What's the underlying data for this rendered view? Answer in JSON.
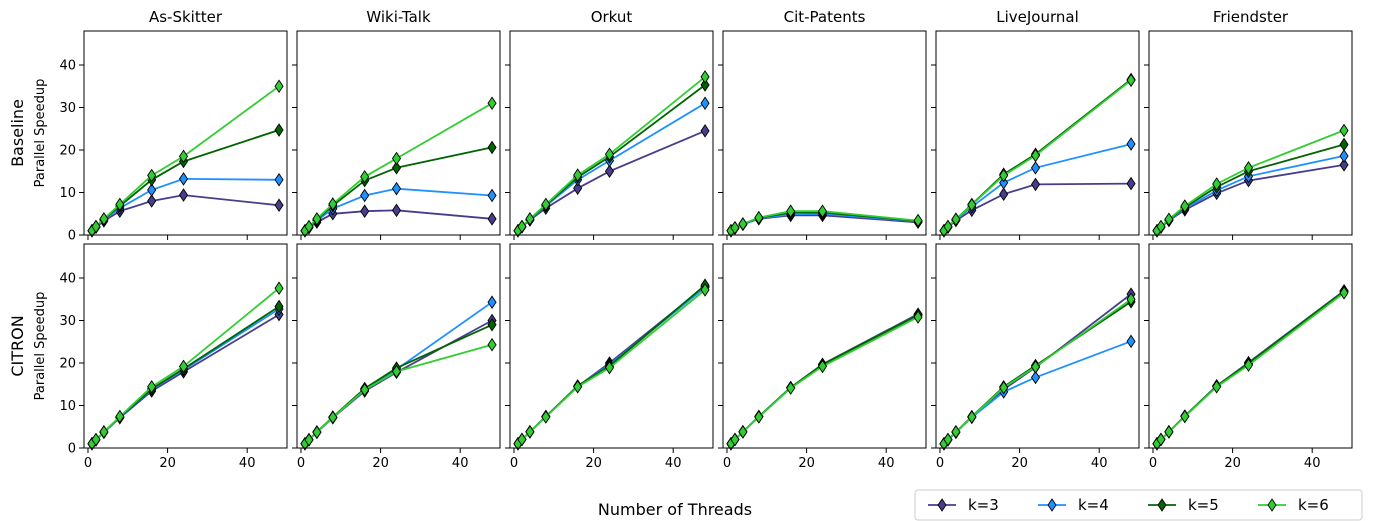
{
  "chart_data": {
    "type": "line",
    "xlabel": "Number of Threads",
    "ylabel": "Parallel Speedup",
    "xlim": [
      -1,
      50
    ],
    "ylim": [
      0,
      48
    ],
    "xticks": [
      0,
      20,
      40
    ],
    "yticks": [
      0,
      10,
      20,
      30,
      40
    ],
    "x": [
      1,
      2,
      4,
      8,
      16,
      24,
      48
    ],
    "columns": [
      "As-Skitter",
      "Wiki-Talk",
      "Orkut",
      "Cit-Patents",
      "LiveJournal",
      "Friendster"
    ],
    "rows": [
      "Baseline",
      "CITRON"
    ],
    "legend": {
      "placement": "bottom-right",
      "series": [
        {
          "name": "k=3",
          "color": "#483d8b",
          "marker": "diamond"
        },
        {
          "name": "k=4",
          "color": "#1e90ff",
          "marker": "diamond"
        },
        {
          "name": "k=5",
          "color": "#006400",
          "marker": "diamond"
        },
        {
          "name": "k=6",
          "color": "#32cd32",
          "marker": "diamond"
        }
      ]
    },
    "panels": {
      "Baseline": {
        "As-Skitter": [
          [
            1,
            1.8,
            3.3,
            5.6,
            8,
            9.4,
            7
          ],
          [
            1,
            1.9,
            3.6,
            6.3,
            10.6,
            13.2,
            13
          ],
          [
            1,
            2,
            3.7,
            6.8,
            13,
            17.3,
            24.7
          ],
          [
            1,
            2,
            3.8,
            7.2,
            14,
            18.5,
            35
          ]
        ],
        "Wiki-Talk": [
          [
            1,
            1.7,
            3,
            5,
            5.6,
            5.8,
            3.8
          ],
          [
            1,
            1.8,
            3.4,
            6.2,
            9.3,
            10.9,
            9.3
          ],
          [
            1,
            1.9,
            3.6,
            6.9,
            12.8,
            15.8,
            20.6
          ],
          [
            1,
            2,
            3.8,
            7.3,
            13.7,
            18,
            31
          ]
        ],
        "Orkut": [
          [
            1,
            1.9,
            3.5,
            6.3,
            11,
            15,
            24.5
          ],
          [
            1,
            1.9,
            3.6,
            6.8,
            13,
            17.5,
            31
          ],
          [
            1,
            2,
            3.7,
            7,
            13.6,
            18.4,
            35.3
          ],
          [
            1,
            2,
            3.8,
            7.2,
            14.1,
            19,
            37.2
          ]
        ],
        "Cit-Patents": [
          [
            1,
            1.6,
            2.5,
            3.8,
            4.6,
            4.6,
            3
          ],
          [
            1,
            1.6,
            2.5,
            3.9,
            4.9,
            5,
            3.2
          ],
          [
            1,
            1.7,
            2.6,
            4,
            5.3,
            5.3,
            3.3
          ],
          [
            1,
            1.7,
            2.6,
            4.1,
            5.6,
            5.6,
            3.4
          ]
        ],
        "LiveJournal": [
          [
            1,
            1.8,
            3.4,
            5.8,
            9.6,
            11.9,
            12.1
          ],
          [
            1,
            1.9,
            3.6,
            6.6,
            12.3,
            15.8,
            21.4
          ],
          [
            1,
            2,
            3.7,
            7.2,
            14.3,
            19,
            36.6
          ],
          [
            1,
            2,
            3.7,
            7.1,
            14,
            18.7,
            36.4
          ]
        ],
        "Friendster": [
          [
            1,
            1.8,
            3.4,
            5.9,
            9.8,
            12.8,
            16.5
          ],
          [
            1,
            1.9,
            3.5,
            6.2,
            10.5,
            13.8,
            18.6
          ],
          [
            1,
            1.9,
            3.6,
            6.5,
            11.3,
            15,
            21.3
          ],
          [
            1,
            2,
            3.7,
            6.8,
            12,
            15.8,
            24.6
          ]
        ]
      },
      "CITRON": {
        "As-Skitter": [
          [
            1,
            1.9,
            3.7,
            7.1,
            13.4,
            17.9,
            31.4
          ],
          [
            1,
            1.9,
            3.7,
            7.2,
            13.8,
            18.4,
            32.7
          ],
          [
            1,
            1.9,
            3.8,
            7.3,
            13.9,
            18.6,
            33.3
          ],
          [
            1,
            2,
            3.8,
            7.4,
            14.4,
            19.2,
            37.6
          ]
        ],
        "Wiki-Talk": [
          [
            1,
            1.9,
            3.7,
            7.1,
            13.4,
            17.8,
            30
          ],
          [
            1,
            1.9,
            3.7,
            7.2,
            13.8,
            18.5,
            34.3
          ],
          [
            1,
            2,
            3.8,
            7.3,
            14,
            18.8,
            29
          ],
          [
            1,
            1.9,
            3.7,
            7.2,
            13.7,
            18,
            24.3
          ]
        ],
        "Orkut": [
          [
            1,
            2,
            3.8,
            7.4,
            14.5,
            20,
            38
          ],
          [
            1,
            2,
            3.8,
            7.4,
            14.5,
            19.6,
            37.8
          ],
          [
            1,
            2,
            3.8,
            7.4,
            14.6,
            19.3,
            38.3
          ],
          [
            1,
            2,
            3.8,
            7.3,
            14.4,
            18.9,
            37.2
          ]
        ],
        "Cit-Patents": [
          [
            1,
            2,
            3.8,
            7.4,
            14.2,
            19.7,
            31.5
          ],
          [
            1,
            2,
            3.8,
            7.4,
            14.2,
            19.5,
            31.2
          ],
          [
            1,
            2,
            3.8,
            7.4,
            14.2,
            19.6,
            31.3
          ],
          [
            1,
            2,
            3.8,
            7.3,
            14.1,
            19.2,
            30.8
          ]
        ],
        "LiveJournal": [
          [
            1,
            1.9,
            3.7,
            7.3,
            13.8,
            19,
            36.2
          ],
          [
            1,
            1.9,
            3.7,
            7.2,
            13.2,
            16.6,
            25.1
          ],
          [
            1,
            2,
            3.8,
            7.4,
            14.4,
            19.4,
            34.4
          ],
          [
            1,
            2,
            3.8,
            7.3,
            14.2,
            19.1,
            35
          ]
        ],
        "Friendster": [
          [
            1,
            2,
            3.8,
            7.5,
            14.6,
            20.1,
            37
          ],
          [
            1,
            2,
            3.8,
            7.5,
            14.6,
            19.8,
            36.8
          ],
          [
            1,
            2,
            3.8,
            7.5,
            14.6,
            19.9,
            36.9
          ],
          [
            1,
            2,
            3.8,
            7.4,
            14.4,
            19.5,
            36.5
          ]
        ]
      }
    }
  }
}
